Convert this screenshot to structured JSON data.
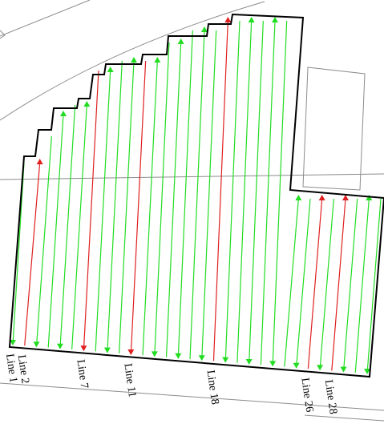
{
  "map": {
    "colors": {
      "background": "#ffffff",
      "basemap_line": "#8c8c8c",
      "boundary": "#000000",
      "flight_line": "#22dd22",
      "highlight_line": "#e02020"
    },
    "flight_lines": {
      "count": 31,
      "highlighted": [
        2,
        7,
        11,
        18,
        26,
        28
      ],
      "labels": [
        "Line 1",
        "Line 2",
        "Line 7",
        "Line 11",
        "Line 18",
        "Line 26",
        "Line 28"
      ]
    }
  }
}
